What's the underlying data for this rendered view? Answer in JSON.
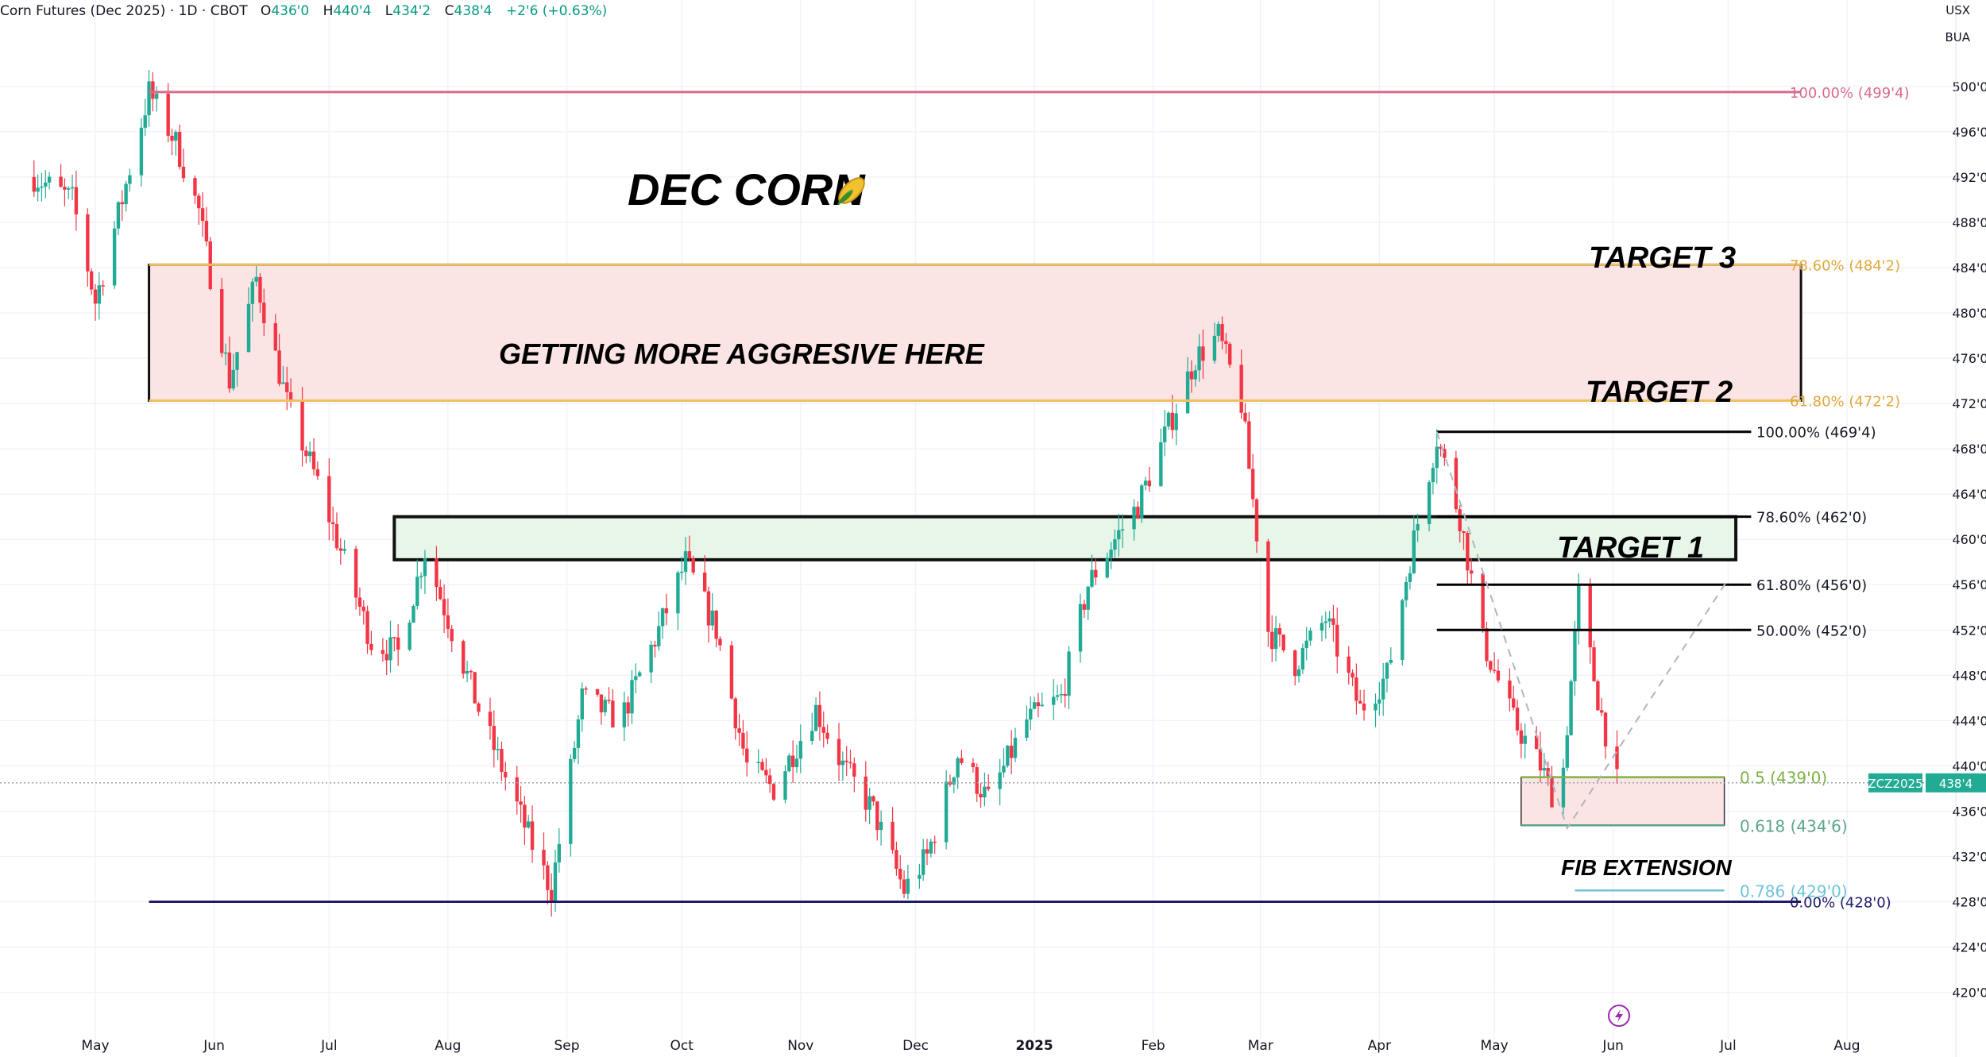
{
  "header": {
    "symbol": "Corn Futures (Dec 2025) · 1D · CBOT",
    "o_label": "O",
    "o_value": "436'0",
    "h_label": "H",
    "h_value": "440'4",
    "l_label": "L",
    "l_value": "434'2",
    "c_label": "C",
    "c_value": "438'4",
    "change": "+2'6 (+0.63%)",
    "currency": "USX",
    "unit": "BUA"
  },
  "colors": {
    "up": "#22ab94",
    "down": "#f23645",
    "fib100": "#d96b8a",
    "fib_gold": "#f0c060",
    "fib_gold_text": "#e0a83a",
    "fib_zero": "#1f1a6b",
    "ext_green": "#7cb342",
    "ext_teal": "#5aa58a",
    "ext_cyan": "#6fc3d8",
    "red_zone": "#fbe4e4",
    "green_zone": "#e8f5e9"
  },
  "annotations": {
    "title": "DEC CORN",
    "title_icon": "corn-icon",
    "zone_text": "GETTING MORE AGGRESIVE HERE",
    "target1": "TARGET 1",
    "target2": "TARGET 2",
    "target3": "TARGET 3",
    "fib_extension": "FIB EXTENSION",
    "badge_symbol": "ZCZ2025",
    "badge_price": "438'4"
  },
  "chart_data": {
    "type": "candlestick",
    "y_axis_ticks": [
      "500'0",
      "496'0",
      "492'0",
      "488'0",
      "484'0",
      "480'0",
      "476'0",
      "472'0",
      "468'0",
      "464'0",
      "460'0",
      "456'0",
      "452'0",
      "448'0",
      "444'0",
      "440'0",
      "436'0",
      "432'0",
      "428'0",
      "424'0",
      "420'0"
    ],
    "x_axis_ticks": [
      "May",
      "Jun",
      "Jul",
      "Aug",
      "Sep",
      "Oct",
      "Nov",
      "Dec",
      "2025",
      "Feb",
      "Mar",
      "Apr",
      "May",
      "Jun",
      "Jul",
      "Aug"
    ],
    "ylim": [
      418.5,
      503
    ],
    "current_price": 438.5,
    "fib_levels_major": [
      {
        "label": "100.00% (499'4)",
        "value": 499.5
      },
      {
        "label": "78.60% (484'2)",
        "value": 484.25
      },
      {
        "label": "61.80% (472'2)",
        "value": 472.25
      },
      {
        "label": "0.00% (428'0)",
        "value": 428.0
      }
    ],
    "fib_levels_minor": [
      {
        "label": "100.00% (469'4)",
        "value": 469.5
      },
      {
        "label": "78.60% (462'0)",
        "value": 462.0
      },
      {
        "label": "61.80% (456'0)",
        "value": 456.0
      },
      {
        "label": "50.00% (452'0)",
        "value": 452.0
      }
    ],
    "fib_extension": [
      {
        "label": "0.5 (439'0)",
        "value": 439.0
      },
      {
        "label": "0.618 (434'6)",
        "value": 434.75
      },
      {
        "label": "0.786 (429'0)",
        "value": 429.0
      }
    ],
    "price_path": [
      {
        "date": "2024-04-15",
        "price": 492
      },
      {
        "date": "2024-04-25",
        "price": 490
      },
      {
        "date": "2024-05-01",
        "price": 481
      },
      {
        "date": "2024-05-08",
        "price": 490
      },
      {
        "date": "2024-05-15",
        "price": 499.5
      },
      {
        "date": "2024-05-22",
        "price": 495
      },
      {
        "date": "2024-05-28",
        "price": 489
      },
      {
        "date": "2024-06-05",
        "price": 474
      },
      {
        "date": "2024-06-12",
        "price": 483
      },
      {
        "date": "2024-06-20",
        "price": 472
      },
      {
        "date": "2024-06-28",
        "price": 465
      },
      {
        "date": "2024-07-05",
        "price": 458
      },
      {
        "date": "2024-07-12",
        "price": 451
      },
      {
        "date": "2024-07-19",
        "price": 450
      },
      {
        "date": "2024-07-26",
        "price": 459
      },
      {
        "date": "2024-08-02",
        "price": 452
      },
      {
        "date": "2024-08-09",
        "price": 445
      },
      {
        "date": "2024-08-16",
        "price": 439
      },
      {
        "date": "2024-08-23",
        "price": 433
      },
      {
        "date": "2024-08-28",
        "price": 429
      },
      {
        "date": "2024-09-05",
        "price": 446
      },
      {
        "date": "2024-09-15",
        "price": 444
      },
      {
        "date": "2024-09-25",
        "price": 452
      },
      {
        "date": "2024-10-02",
        "price": 458
      },
      {
        "date": "2024-10-10",
        "price": 452
      },
      {
        "date": "2024-10-18",
        "price": 440
      },
      {
        "date": "2024-10-25",
        "price": 438
      },
      {
        "date": "2024-11-05",
        "price": 445
      },
      {
        "date": "2024-11-12",
        "price": 440
      },
      {
        "date": "2024-11-20",
        "price": 436
      },
      {
        "date": "2024-11-28",
        "price": 429
      },
      {
        "date": "2024-12-04",
        "price": 432
      },
      {
        "date": "2024-12-12",
        "price": 441
      },
      {
        "date": "2024-12-20",
        "price": 437
      },
      {
        "date": "2024-12-30",
        "price": 444
      },
      {
        "date": "2025-01-08",
        "price": 446
      },
      {
        "date": "2025-01-15",
        "price": 456
      },
      {
        "date": "2025-01-22",
        "price": 460
      },
      {
        "date": "2025-01-28",
        "price": 463
      },
      {
        "date": "2025-02-05",
        "price": 470
      },
      {
        "date": "2025-02-12",
        "price": 476
      },
      {
        "date": "2025-02-18",
        "price": 478
      },
      {
        "date": "2025-02-24",
        "price": 472
      },
      {
        "date": "2025-03-03",
        "price": 452
      },
      {
        "date": "2025-03-10",
        "price": 449
      },
      {
        "date": "2025-03-18",
        "price": 453
      },
      {
        "date": "2025-03-27",
        "price": 445
      },
      {
        "date": "2025-04-03",
        "price": 448
      },
      {
        "date": "2025-04-10",
        "price": 460
      },
      {
        "date": "2025-04-16",
        "price": 469
      },
      {
        "date": "2025-04-22",
        "price": 462
      },
      {
        "date": "2025-04-28",
        "price": 451
      },
      {
        "date": "2025-05-06",
        "price": 444
      },
      {
        "date": "2025-05-13",
        "price": 440
      },
      {
        "date": "2025-05-18",
        "price": 436
      },
      {
        "date": "2025-05-23",
        "price": 455
      },
      {
        "date": "2025-05-28",
        "price": 446
      },
      {
        "date": "2025-06-02",
        "price": 438.5
      }
    ]
  }
}
